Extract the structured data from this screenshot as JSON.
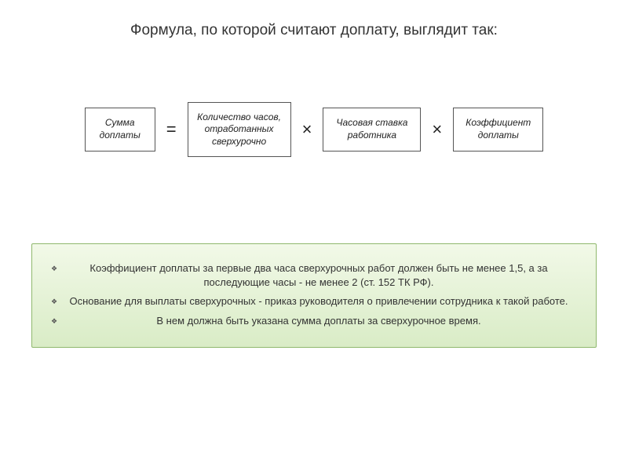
{
  "title": "Формула, по которой считают доплату, выглядит так:",
  "formula": {
    "boxes": [
      {
        "text": "Сумма доплаты",
        "cls": "b0"
      },
      {
        "text": "Количество часов, отработанных сверхурочно",
        "cls": "b1"
      },
      {
        "text": "Часовая ставка работника",
        "cls": "b2"
      },
      {
        "text": "Коэффициент доплаты",
        "cls": "b3"
      }
    ],
    "operators": [
      "=",
      "×",
      "×"
    ],
    "box_border_color": "#555555",
    "box_font_size": 12,
    "op_font_size": 22
  },
  "notes": {
    "items": [
      "Коэффициент доплаты за первые два часа сверхурочных работ должен быть не менее 1,5, а за последующие часы - не менее 2 (ст. 152 ТК РФ).",
      "Основание для выплаты сверхурочных - приказ руководителя о привлечении сотрудника к такой работе.",
      "В нем должна быть указана сумма доплаты за сверхурочное время."
    ],
    "panel_border_color": "#8fb86d",
    "panel_bg_top": "#f2f9e8",
    "panel_bg_bottom": "#d9ecc6",
    "font_size": 13
  },
  "colors": {
    "page_bg": "#ffffff",
    "title_color": "#333333",
    "text_color": "#333333"
  }
}
